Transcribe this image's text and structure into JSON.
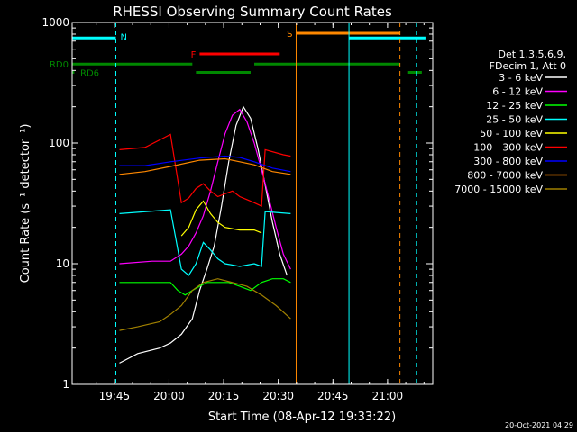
{
  "chart_data": {
    "type": "line",
    "title": "RHESSI Observing Summary Count Rates",
    "xlabel": "Start Time (08-Apr-12 19:33:22)",
    "ylabel": "Count Rate (s⁻¹ detector⁻¹)",
    "y_scale": "log",
    "ylim": [
      1,
      1000
    ],
    "xlim_minutes_from_start": [
      0,
      99
    ],
    "x_ticks": [
      {
        "label": "19:45",
        "t": 11.6
      },
      {
        "label": "20:00",
        "t": 26.6
      },
      {
        "label": "20:15",
        "t": 41.6
      },
      {
        "label": "20:30",
        "t": 56.6
      },
      {
        "label": "20:45",
        "t": 71.6
      },
      {
        "label": "21:00",
        "t": 86.6
      }
    ],
    "y_ticks": [
      {
        "label": "1",
        "v": 1
      },
      {
        "label": "10",
        "v": 10
      },
      {
        "label": "100",
        "v": 100
      },
      {
        "label": "1000",
        "v": 1000
      }
    ],
    "legend_header": [
      "Det 1,3,5,6,9,",
      "FDecim 1, Att 0"
    ],
    "series": [
      {
        "name": "3 - 6 keV",
        "color": "#ffffff",
        "points": [
          [
            13,
            1.5
          ],
          [
            18,
            1.8
          ],
          [
            24,
            2.0
          ],
          [
            27,
            2.2
          ],
          [
            30,
            2.6
          ],
          [
            33,
            3.5
          ],
          [
            35,
            6
          ],
          [
            37,
            9
          ],
          [
            39,
            14
          ],
          [
            41,
            30
          ],
          [
            43,
            70
          ],
          [
            45,
            140
          ],
          [
            47,
            200
          ],
          [
            49,
            160
          ],
          [
            51,
            90
          ],
          [
            53,
            45
          ],
          [
            55,
            22
          ],
          [
            57,
            12
          ],
          [
            59,
            8
          ]
        ]
      },
      {
        "name": "6 - 12 keV",
        "color": "#ff00ff",
        "points": [
          [
            13,
            10
          ],
          [
            22,
            10.5
          ],
          [
            27,
            10.5
          ],
          [
            30,
            12
          ],
          [
            32,
            14
          ],
          [
            34,
            18
          ],
          [
            36,
            25
          ],
          [
            38,
            40
          ],
          [
            40,
            70
          ],
          [
            42,
            120
          ],
          [
            44,
            170
          ],
          [
            46,
            190
          ],
          [
            48,
            150
          ],
          [
            50,
            100
          ],
          [
            52,
            60
          ],
          [
            54,
            35
          ],
          [
            56,
            20
          ],
          [
            58,
            12
          ],
          [
            60,
            9
          ]
        ]
      },
      {
        "name": "12 - 25 keV",
        "color": "#00ff00",
        "points": [
          [
            13,
            7
          ],
          [
            20,
            7
          ],
          [
            27,
            7
          ],
          [
            29,
            6
          ],
          [
            31,
            5.5
          ],
          [
            33,
            6
          ],
          [
            35,
            6.5
          ],
          [
            37,
            7
          ],
          [
            40,
            7
          ],
          [
            43,
            7
          ],
          [
            46,
            6.5
          ],
          [
            49,
            6
          ],
          [
            52,
            7
          ],
          [
            55,
            7.5
          ],
          [
            58,
            7.5
          ],
          [
            60,
            7
          ]
        ]
      },
      {
        "name": "25 - 50 keV",
        "color": "#00ffff",
        "points": [
          [
            13,
            26
          ],
          [
            27,
            28
          ],
          [
            30,
            9
          ],
          [
            32,
            8
          ],
          [
            34,
            10
          ],
          [
            36,
            15
          ],
          [
            38,
            13
          ],
          [
            40,
            11
          ],
          [
            42,
            10
          ],
          [
            46,
            9.5
          ],
          [
            50,
            10
          ],
          [
            52,
            9.5
          ],
          [
            53,
            27
          ],
          [
            60,
            26
          ]
        ]
      },
      {
        "name": "50 - 100 keV",
        "color": "#ffff00",
        "points": [
          [
            30,
            17
          ],
          [
            32,
            20
          ],
          [
            34,
            28
          ],
          [
            36,
            33
          ],
          [
            38,
            26
          ],
          [
            40,
            22
          ],
          [
            42,
            20
          ],
          [
            46,
            19
          ],
          [
            50,
            19
          ],
          [
            52,
            18
          ]
        ]
      },
      {
        "name": "100 - 300 keV",
        "color": "#ff0000",
        "points": [
          [
            13,
            88
          ],
          [
            20,
            92
          ],
          [
            27,
            118
          ],
          [
            30,
            32
          ],
          [
            32,
            35
          ],
          [
            34,
            42
          ],
          [
            36,
            46
          ],
          [
            38,
            40
          ],
          [
            40,
            36
          ],
          [
            42,
            38
          ],
          [
            44,
            40
          ],
          [
            46,
            36
          ],
          [
            48,
            34
          ],
          [
            50,
            32
          ],
          [
            52,
            30
          ],
          [
            53,
            88
          ],
          [
            58,
            80
          ],
          [
            60,
            78
          ]
        ]
      },
      {
        "name": "300 - 800 keV",
        "color": "#0000ff",
        "points": [
          [
            13,
            65
          ],
          [
            20,
            65
          ],
          [
            27,
            70
          ],
          [
            35,
            75
          ],
          [
            42,
            78
          ],
          [
            46,
            76
          ],
          [
            50,
            70
          ],
          [
            55,
            62
          ],
          [
            60,
            58
          ]
        ]
      },
      {
        "name": "800 - 7000 keV",
        "color": "#ff8800",
        "points": [
          [
            13,
            55
          ],
          [
            20,
            58
          ],
          [
            27,
            64
          ],
          [
            35,
            72
          ],
          [
            42,
            74
          ],
          [
            46,
            70
          ],
          [
            50,
            66
          ],
          [
            55,
            58
          ],
          [
            60,
            55
          ]
        ]
      },
      {
        "name": "7000 - 15000 keV",
        "color": "#a08000",
        "points": [
          [
            13,
            2.8
          ],
          [
            18,
            3.0
          ],
          [
            24,
            3.3
          ],
          [
            27,
            3.8
          ],
          [
            30,
            4.5
          ],
          [
            33,
            6
          ],
          [
            36,
            7
          ],
          [
            40,
            7.5
          ],
          [
            44,
            7
          ],
          [
            48,
            6.5
          ],
          [
            52,
            5.5
          ],
          [
            56,
            4.5
          ],
          [
            60,
            3.5
          ]
        ]
      }
    ],
    "status_bars": [
      {
        "label": "N",
        "color": "#00ffff",
        "level": 0.957,
        "segments": [
          [
            0,
            12
          ],
          [
            76,
            97
          ]
        ]
      },
      {
        "label": "S",
        "color": "#ff8800",
        "level": 0.97,
        "segments": [
          [
            61.5,
            90
          ]
        ]
      },
      {
        "label": "F",
        "color": "#ff0000",
        "level": 0.913,
        "segments": [
          [
            35,
            57
          ]
        ]
      },
      {
        "label": "RD0",
        "color": "#008800",
        "level": 0.885,
        "segments": [
          [
            0,
            33
          ],
          [
            50,
            90
          ]
        ]
      },
      {
        "label": "RD6",
        "color": "#008800",
        "level": 0.862,
        "segments": [
          [
            0,
            0.6
          ],
          [
            34,
            49
          ],
          [
            92,
            96
          ]
        ]
      }
    ],
    "vertical_markers": [
      {
        "color": "#00ffff",
        "style": "solid",
        "t": 0
      },
      {
        "color": "#00ffff",
        "style": "dashed",
        "t": 12
      },
      {
        "color": "#ff8800",
        "style": "solid",
        "t": 61.5
      },
      {
        "color": "#00ffff",
        "style": "solid",
        "t": 76
      },
      {
        "color": "#ff8800",
        "style": "dashed",
        "t": 90
      },
      {
        "color": "#00ffff",
        "style": "dashed",
        "t": 94.5
      }
    ]
  },
  "footer_timestamp": "20-Oct-2021 04:29"
}
